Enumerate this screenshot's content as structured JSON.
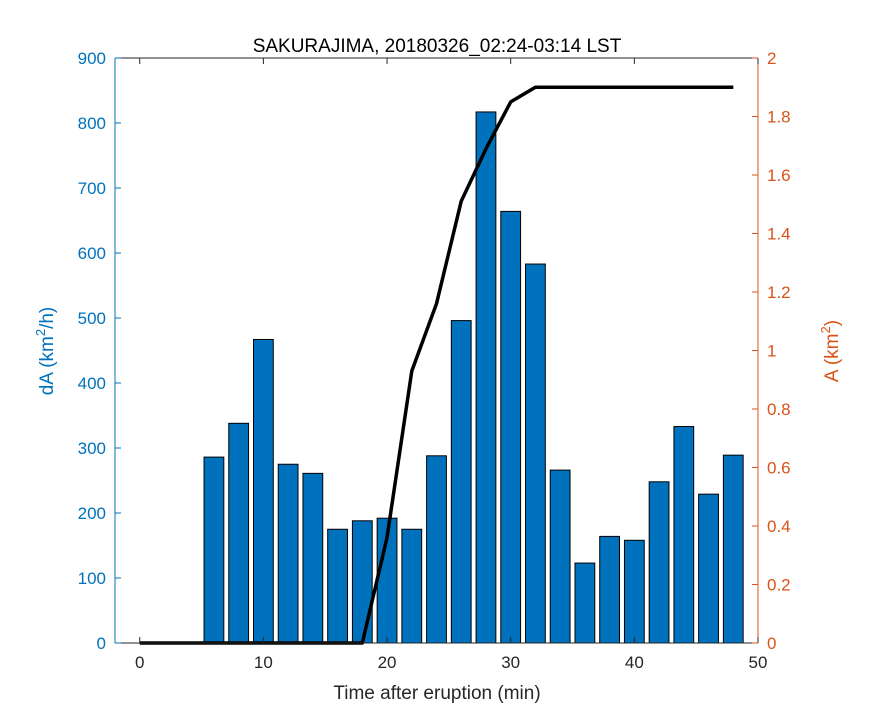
{
  "chart_data": {
    "type": "bar",
    "title": "SAKURAJIMA, 20180326_02:24-03:14 LST",
    "xlabel": "Time after eruption (min)",
    "ylabel_left": {
      "base": "dA (km",
      "sup": "2",
      "tail": "/h)"
    },
    "ylabel_right": {
      "base": "A (km",
      "sup": "2",
      "tail": ")"
    },
    "xlim": [
      -2,
      50
    ],
    "ylim_left": [
      0,
      900
    ],
    "ylim_right": [
      0,
      2
    ],
    "x_ticks": [
      "0",
      "10",
      "20",
      "30",
      "40",
      "50"
    ],
    "y_left_ticks": [
      "0",
      "100",
      "200",
      "300",
      "400",
      "500",
      "600",
      "700",
      "800",
      "900"
    ],
    "y_right_ticks": [
      "0",
      "0.2",
      "0.4",
      "0.6",
      "0.8",
      "1",
      "1.2",
      "1.4",
      "1.6",
      "1.8",
      "2"
    ],
    "bars": {
      "name": "dA",
      "color": "#0072BD",
      "x": [
        6,
        8,
        10,
        12,
        14,
        16,
        18,
        20,
        22,
        24,
        26,
        28,
        30,
        32,
        34,
        36,
        38,
        40,
        42,
        44,
        46,
        48
      ],
      "values": [
        286,
        338,
        467,
        275,
        261,
        175,
        188,
        192,
        175,
        288,
        496,
        817,
        664,
        583,
        266,
        123,
        164,
        158,
        248,
        333,
        229,
        289
      ]
    },
    "line": {
      "name": "A",
      "color": "#000000",
      "x": [
        0,
        2,
        4,
        6,
        8,
        10,
        12,
        14,
        16,
        18,
        20,
        22,
        24,
        26,
        28,
        30,
        32,
        34,
        36,
        38,
        40,
        42,
        44,
        46,
        48
      ],
      "values": [
        0,
        0,
        0,
        0,
        0,
        0,
        0,
        0,
        0,
        0,
        0.36,
        0.93,
        1.16,
        1.51,
        1.69,
        1.85,
        1.9,
        1.9,
        1.9,
        1.9,
        1.9,
        1.9,
        1.9,
        1.9,
        1.9
      ]
    },
    "colors": {
      "left_axis": "#0072BD",
      "right_axis": "#D95319"
    },
    "grid": false
  }
}
